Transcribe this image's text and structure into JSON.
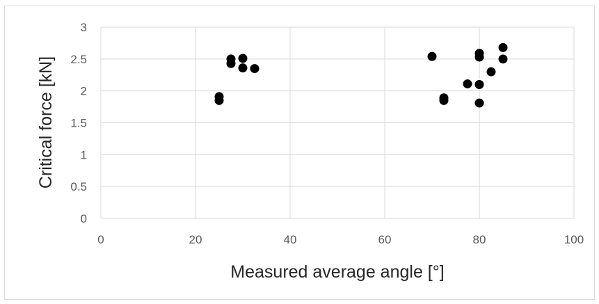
{
  "chart_data": {
    "type": "scatter",
    "title": "",
    "xlabel": "Measured average angle [°]",
    "ylabel": "Critical force [kN]",
    "xlim": [
      0,
      100
    ],
    "ylim": [
      0,
      3
    ],
    "xticks": [
      0,
      20,
      40,
      60,
      80,
      100
    ],
    "yticks": [
      0,
      0.5,
      1,
      1.5,
      2,
      2.5,
      3
    ],
    "xtick_labels": [
      "0",
      "20",
      "40",
      "60",
      "80",
      "100"
    ],
    "ytick_labels": [
      "0",
      "0.5",
      "1",
      "1.5",
      "2",
      "2.5",
      "3"
    ],
    "grid": true,
    "legend": "none",
    "marker_color": "#000000",
    "series": [
      {
        "points": [
          {
            "x": 25,
            "y": 1.91
          },
          {
            "x": 25,
            "y": 1.85
          },
          {
            "x": 27.5,
            "y": 2.5
          },
          {
            "x": 27.5,
            "y": 2.43
          },
          {
            "x": 30,
            "y": 2.51
          },
          {
            "x": 30,
            "y": 2.36
          },
          {
            "x": 32.5,
            "y": 2.35
          },
          {
            "x": 70,
            "y": 2.54
          },
          {
            "x": 72.5,
            "y": 1.89
          },
          {
            "x": 72.5,
            "y": 1.85
          },
          {
            "x": 77.5,
            "y": 2.11
          },
          {
            "x": 80,
            "y": 2.59
          },
          {
            "x": 80,
            "y": 2.53
          },
          {
            "x": 80,
            "y": 2.1
          },
          {
            "x": 80,
            "y": 1.81
          },
          {
            "x": 82.5,
            "y": 2.3
          },
          {
            "x": 85,
            "y": 2.68
          },
          {
            "x": 85,
            "y": 2.5
          }
        ]
      }
    ]
  }
}
